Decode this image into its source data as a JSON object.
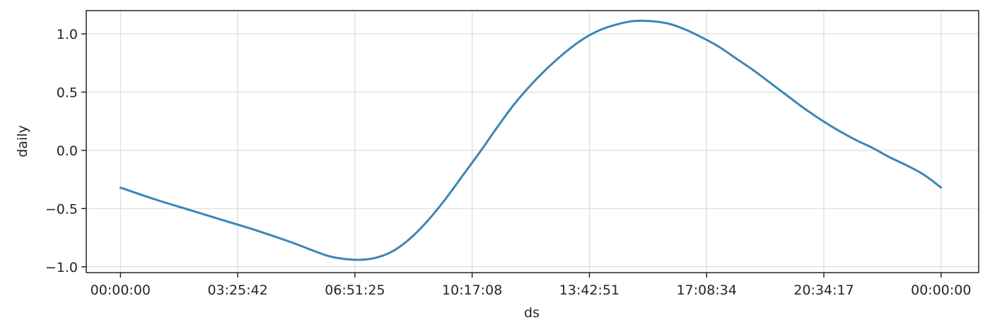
{
  "chart_data": {
    "type": "line",
    "title": "",
    "xlabel": "ds",
    "ylabel": "daily",
    "x_tick_labels": [
      "00:00:00",
      "03:25:42",
      "06:51:25",
      "10:17:08",
      "13:42:51",
      "17:08:34",
      "20:34:17",
      "00:00:00"
    ],
    "y_ticks": [
      -1.0,
      -0.5,
      0.0,
      0.5,
      1.0
    ],
    "y_tick_labels": [
      "−1.0",
      "−0.5",
      "0.0",
      "0.5",
      "1.0"
    ],
    "xlim_hours": [
      -1.0,
      25.1
    ],
    "ylim": [
      -1.05,
      1.2
    ],
    "grid": true,
    "legend": "none",
    "series": [
      {
        "color": "#3a86b8",
        "x_hours": [
          0.0,
          1.0,
          2.0,
          3.0,
          4.0,
          5.0,
          6.0,
          6.5,
          7.0,
          7.5,
          8.0,
          8.5,
          9.0,
          9.5,
          10.0,
          10.5,
          11.0,
          11.5,
          12.0,
          12.5,
          13.0,
          13.5,
          14.0,
          14.5,
          15.0,
          15.5,
          16.0,
          16.5,
          17.0,
          17.5,
          18.0,
          18.5,
          19.0,
          19.5,
          20.0,
          20.5,
          21.0,
          21.5,
          22.0,
          22.5,
          23.0,
          23.5,
          24.0
        ],
        "y": [
          -0.32,
          -0.42,
          -0.51,
          -0.6,
          -0.69,
          -0.79,
          -0.9,
          -0.93,
          -0.94,
          -0.92,
          -0.86,
          -0.75,
          -0.6,
          -0.42,
          -0.22,
          -0.02,
          0.19,
          0.39,
          0.56,
          0.71,
          0.84,
          0.95,
          1.03,
          1.08,
          1.11,
          1.11,
          1.09,
          1.04,
          0.97,
          0.89,
          0.79,
          0.69,
          0.58,
          0.47,
          0.36,
          0.26,
          0.17,
          0.09,
          0.02,
          -0.06,
          -0.13,
          -0.21,
          -0.32
        ]
      }
    ]
  }
}
